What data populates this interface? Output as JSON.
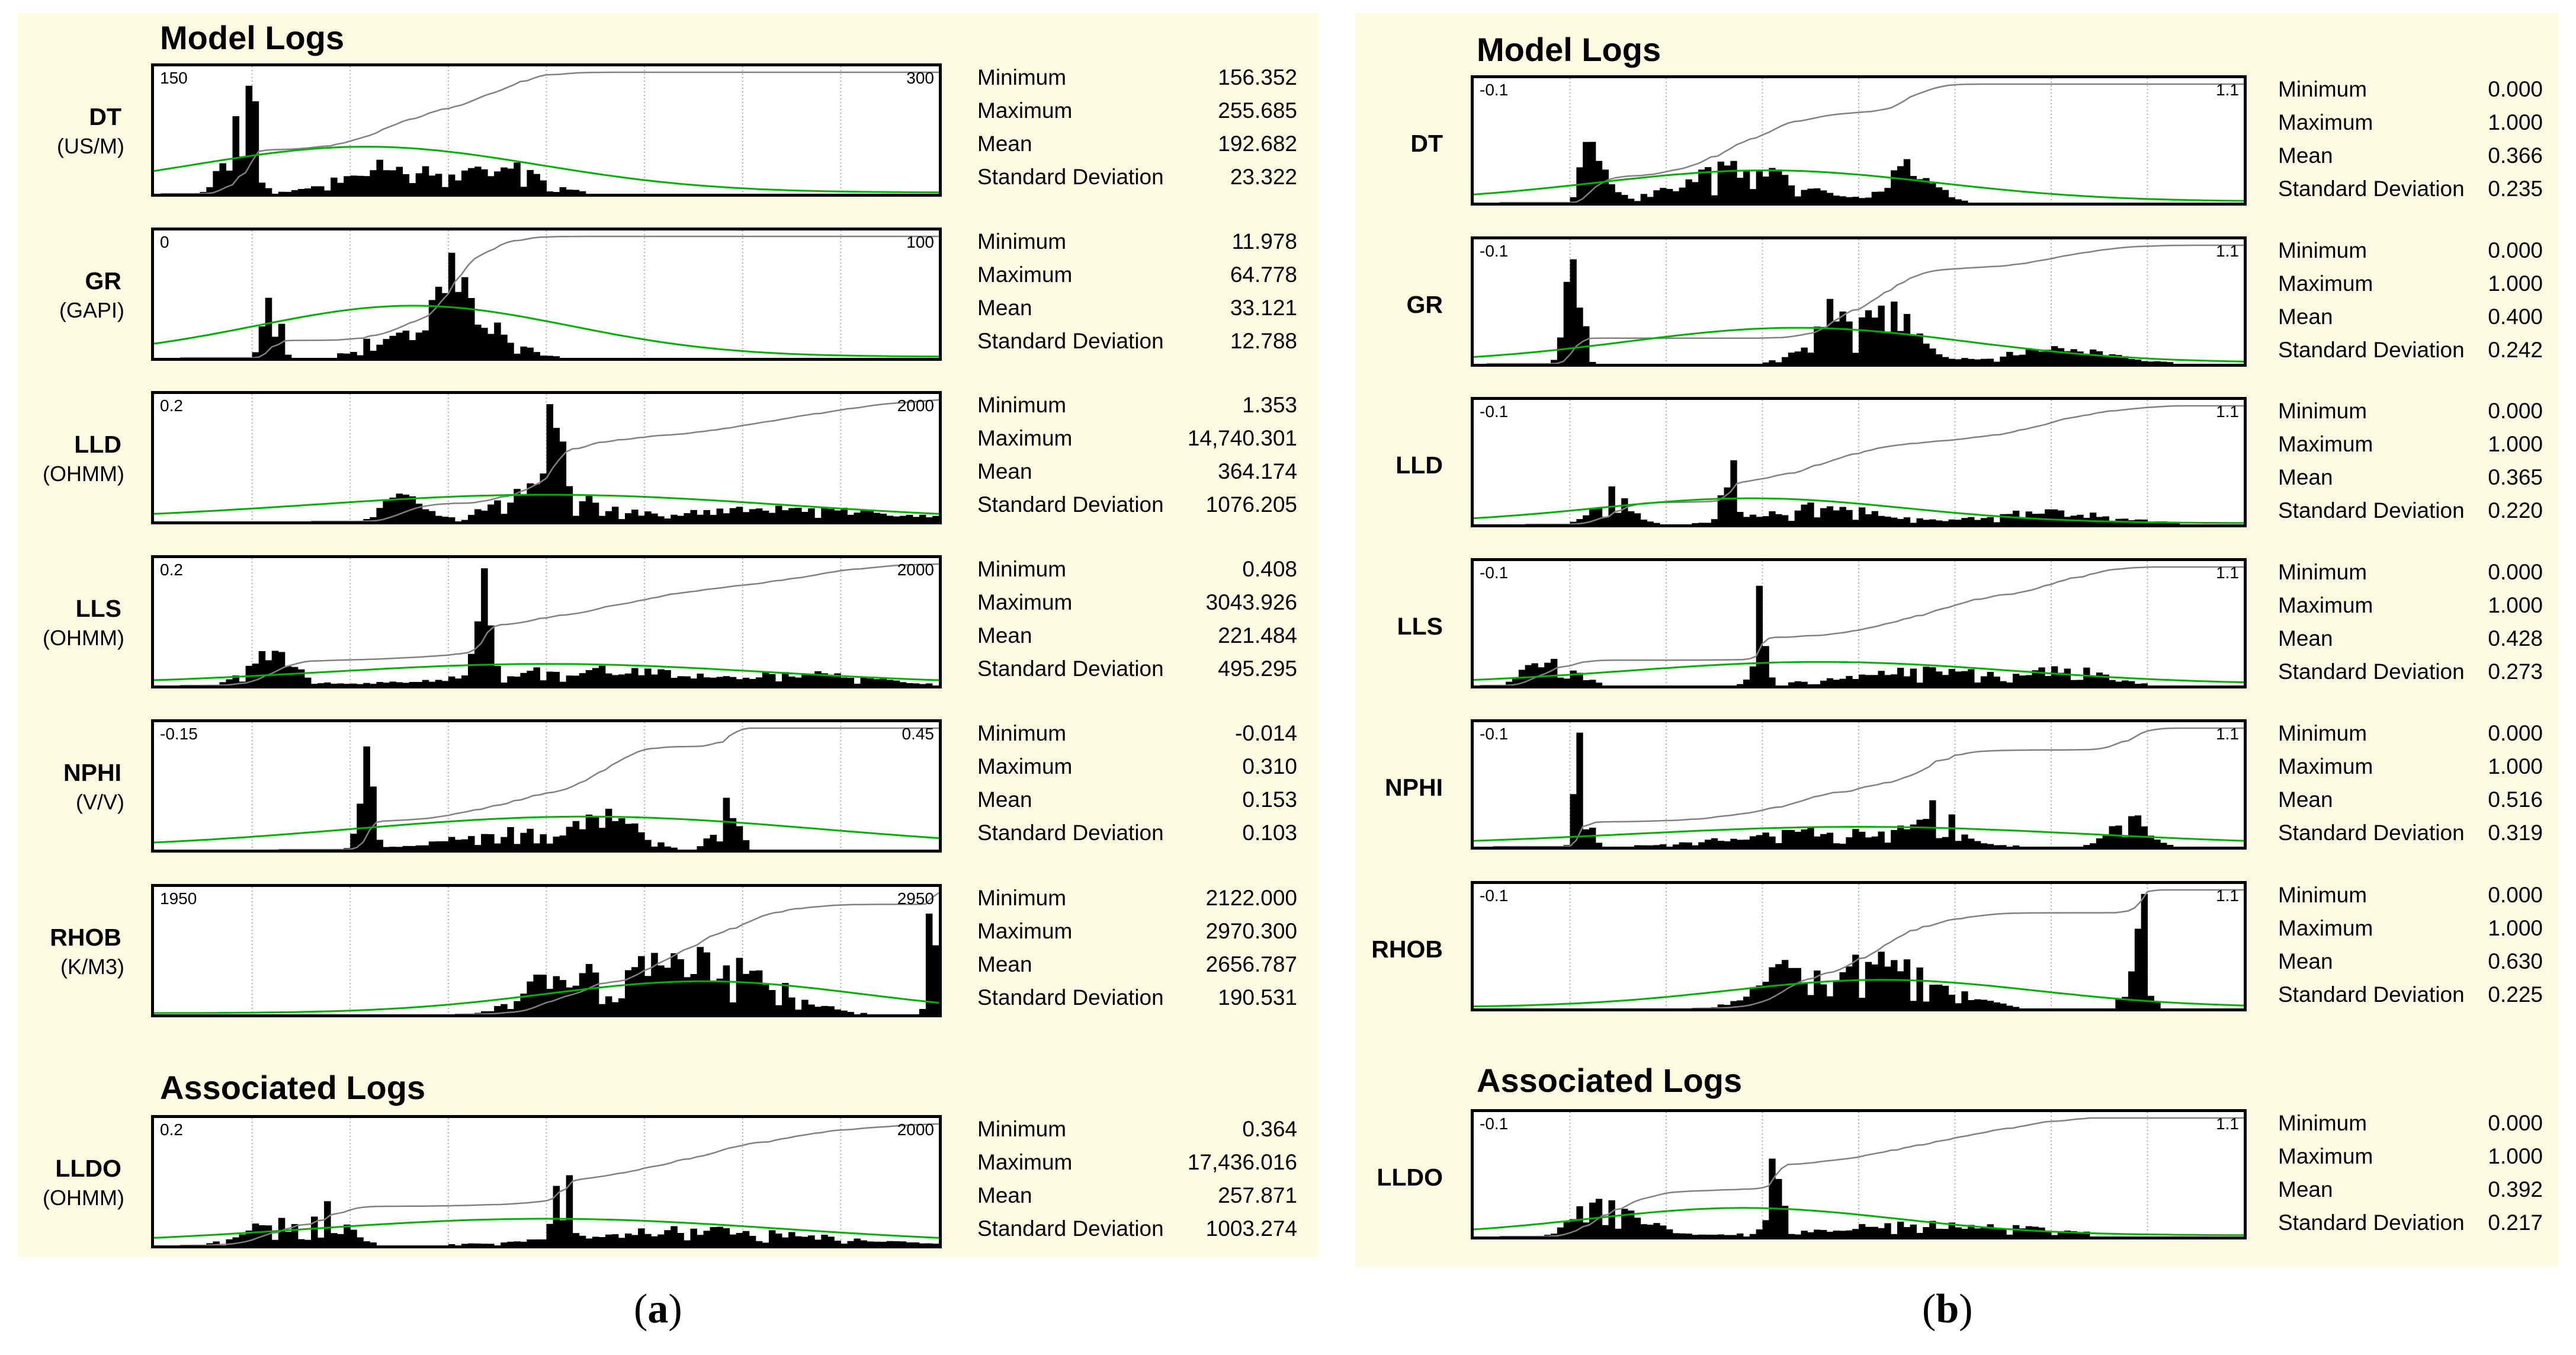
{
  "panels": [
    {
      "caption_open": "(",
      "caption_letter": "a",
      "caption_close": ")",
      "model_title": "Model Logs",
      "assoc_title": "Associated Logs",
      "stat_labels": [
        "Minimum",
        "Maximum",
        "Mean",
        "Standard Deviation"
      ],
      "logs": [
        {
          "name": "DT",
          "unit": "(US/M)",
          "range_lo": "150",
          "range_hi": "300",
          "stats": [
            "156.352",
            "255.685",
            "192.682",
            "23.322"
          ],
          "seed": 11,
          "peaks": [
            [
              0.12,
              1.0,
              0.015
            ],
            [
              0.1,
              0.6,
              0.02
            ],
            [
              0.3,
              0.3,
              0.08
            ],
            [
              0.45,
              0.25,
              0.06
            ]
          ],
          "cutoff": 0.72,
          "norm": [
            0.27,
            0.22,
            0.36
          ]
        },
        {
          "name": "GR",
          "unit": "(GAPI)",
          "range_lo": "0",
          "range_hi": "100",
          "stats": [
            "11.978",
            "64.778",
            "33.121",
            "12.788"
          ],
          "seed": 23,
          "peaks": [
            [
              0.15,
              0.92,
              0.012
            ],
            [
              0.38,
              0.62,
              0.02
            ],
            [
              0.4,
              0.45,
              0.06
            ],
            [
              0.3,
              0.2,
              0.05
            ]
          ],
          "cutoff": 0.65,
          "norm": [
            0.33,
            0.2,
            0.4
          ]
        },
        {
          "name": "LLD",
          "unit": "(OHMM)",
          "range_lo": "0.2",
          "range_hi": "2000",
          "stats": [
            "1.353",
            "14,740.301",
            "364.174",
            "1076.205"
          ],
          "seed": 37,
          "peaks": [
            [
              0.51,
              0.95,
              0.012
            ],
            [
              0.32,
              0.35,
              0.03
            ],
            [
              0.5,
              0.3,
              0.08
            ],
            [
              0.8,
              0.12,
              0.2
            ]
          ],
          "cutoff": 1.0,
          "norm": [
            0.5,
            0.3,
            0.2
          ]
        },
        {
          "name": "LLS",
          "unit": "(OHMM)",
          "range_lo": "0.2",
          "range_hi": "2000",
          "stats": [
            "0.408",
            "3043.926",
            "221.484",
            "495.295"
          ],
          "seed": 41,
          "peaks": [
            [
              0.42,
              0.95,
              0.012
            ],
            [
              0.15,
              0.3,
              0.04
            ],
            [
              0.55,
              0.15,
              0.2
            ],
            [
              0.85,
              0.1,
              0.1
            ]
          ],
          "cutoff": 1.0,
          "norm": [
            0.5,
            0.28,
            0.16
          ]
        },
        {
          "name": "NPHI",
          "unit": "(V/V)",
          "range_lo": "-0.15",
          "range_hi": "0.45",
          "stats": [
            "-0.014",
            "0.310",
            "0.153",
            "0.103"
          ],
          "seed": 53,
          "peaks": [
            [
              0.27,
              0.92,
              0.012
            ],
            [
              0.58,
              0.3,
              0.05
            ],
            [
              0.73,
              0.45,
              0.02
            ],
            [
              0.45,
              0.18,
              0.1
            ]
          ],
          "cutoff": 0.76,
          "norm": [
            0.55,
            0.3,
            0.25
          ]
        },
        {
          "name": "RHOB",
          "unit": "(K/M3)",
          "range_lo": "1950",
          "range_hi": "2950",
          "stats": [
            "2122.000",
            "2970.300",
            "2656.787",
            "190.531"
          ],
          "seed": 67,
          "peaks": [
            [
              0.63,
              0.55,
              0.1
            ],
            [
              0.99,
              1.0,
              0.008
            ],
            [
              0.5,
              0.25,
              0.05
            ],
            [
              0.76,
              0.3,
              0.08
            ]
          ],
          "cutoff": 1.0,
          "norm": [
            0.7,
            0.2,
            0.25
          ]
        }
      ],
      "assoc": [
        {
          "name": "LLDO",
          "unit": "(OHMM)",
          "range_lo": "0.2",
          "range_hi": "2000",
          "stats": [
            "0.364",
            "17,436.016",
            "257.871",
            "1003.274"
          ],
          "seed": 79,
          "peaks": [
            [
              0.52,
              0.95,
              0.012
            ],
            [
              0.23,
              0.35,
              0.03
            ],
            [
              0.15,
              0.22,
              0.05
            ],
            [
              0.7,
              0.15,
              0.2
            ]
          ],
          "cutoff": 1.0,
          "norm": [
            0.5,
            0.3,
            0.2
          ]
        }
      ]
    },
    {
      "caption_open": "(",
      "caption_letter": "b",
      "caption_close": ")",
      "model_title": "Model Logs",
      "assoc_title": "Associated Logs",
      "stat_labels": [
        "Minimum",
        "Maximum",
        "Mean",
        "Standard Deviation"
      ],
      "logs": [
        {
          "name": "DT",
          "unit": "",
          "range_lo": "-0.1",
          "range_hi": "1.1",
          "stats": [
            "0.000",
            "1.000",
            "0.366",
            "0.235"
          ],
          "seed": 101,
          "peaks": [
            [
              0.15,
              0.95,
              0.012
            ],
            [
              0.18,
              0.85,
              0.01
            ],
            [
              0.35,
              0.35,
              0.1
            ],
            [
              0.57,
              0.35,
              0.04
            ]
          ],
          "cutoff": 0.92,
          "norm": [
            0.38,
            0.22,
            0.25
          ]
        },
        {
          "name": "GR",
          "unit": "",
          "range_lo": "-0.1",
          "range_hi": "1.1",
          "stats": [
            "0.000",
            "1.000",
            "0.400",
            "0.242"
          ],
          "seed": 113,
          "peaks": [
            [
              0.13,
              0.92,
              0.015
            ],
            [
              0.47,
              0.5,
              0.05
            ],
            [
              0.55,
              0.45,
              0.04
            ],
            [
              0.75,
              0.15,
              0.1
            ]
          ],
          "cutoff": 0.93,
          "norm": [
            0.42,
            0.22,
            0.28
          ]
        },
        {
          "name": "LLD",
          "unit": "",
          "range_lo": "-0.1",
          "range_hi": "1.1",
          "stats": [
            "0.000",
            "1.000",
            "0.365",
            "0.220"
          ],
          "seed": 127,
          "peaks": [
            [
              0.33,
              0.95,
              0.01
            ],
            [
              0.18,
              0.35,
              0.03
            ],
            [
              0.45,
              0.18,
              0.1
            ],
            [
              0.75,
              0.12,
              0.12
            ]
          ],
          "cutoff": 0.92,
          "norm": [
            0.36,
            0.2,
            0.2
          ]
        },
        {
          "name": "LLS",
          "unit": "",
          "range_lo": "-0.1",
          "range_hi": "1.1",
          "stats": [
            "0.000",
            "1.000",
            "0.428",
            "0.273"
          ],
          "seed": 131,
          "peaks": [
            [
              0.37,
              0.92,
              0.01
            ],
            [
              0.1,
              0.3,
              0.04
            ],
            [
              0.6,
              0.15,
              0.15
            ],
            [
              0.78,
              0.12,
              0.06
            ]
          ],
          "cutoff": 0.88,
          "norm": [
            0.45,
            0.25,
            0.18
          ]
        },
        {
          "name": "NPHI",
          "unit": "",
          "range_lo": "-0.1",
          "range_hi": "1.1",
          "stats": [
            "0.000",
            "1.000",
            "0.516",
            "0.319"
          ],
          "seed": 149,
          "peaks": [
            [
              0.14,
              0.95,
              0.012
            ],
            [
              0.85,
              0.35,
              0.03
            ],
            [
              0.6,
              0.3,
              0.04
            ],
            [
              0.45,
              0.15,
              0.15
            ]
          ],
          "cutoff": 0.92,
          "norm": [
            0.5,
            0.3,
            0.15
          ]
        },
        {
          "name": "RHOB",
          "unit": "",
          "range_lo": "-0.1",
          "range_hi": "1.1",
          "stats": [
            "0.000",
            "1.000",
            "0.630",
            "0.225"
          ],
          "seed": 157,
          "peaks": [
            [
              0.87,
              0.95,
              0.008
            ],
            [
              0.53,
              0.45,
              0.1
            ],
            [
              0.4,
              0.3,
              0.05
            ],
            [
              0.86,
              0.3,
              0.02
            ]
          ],
          "cutoff": 0.92,
          "norm": [
            0.53,
            0.2,
            0.22
          ]
        }
      ],
      "assoc": [
        {
          "name": "LLDO",
          "unit": "",
          "range_lo": "-0.1",
          "range_hi": "1.1",
          "stats": [
            "0.000",
            "1.000",
            "0.392",
            "0.217"
          ],
          "seed": 163,
          "peaks": [
            [
              0.39,
              0.95,
              0.012
            ],
            [
              0.15,
              0.35,
              0.03
            ],
            [
              0.2,
              0.2,
              0.05
            ],
            [
              0.6,
              0.12,
              0.2
            ]
          ],
          "cutoff": 0.8,
          "norm": [
            0.35,
            0.2,
            0.22
          ]
        }
      ]
    }
  ],
  "colors": {
    "panel_bg": "#fcfbe1",
    "bars": "#000000",
    "cumulative": "#808080",
    "normal_curve": "#00b000",
    "grid": "#b0b0b0"
  }
}
